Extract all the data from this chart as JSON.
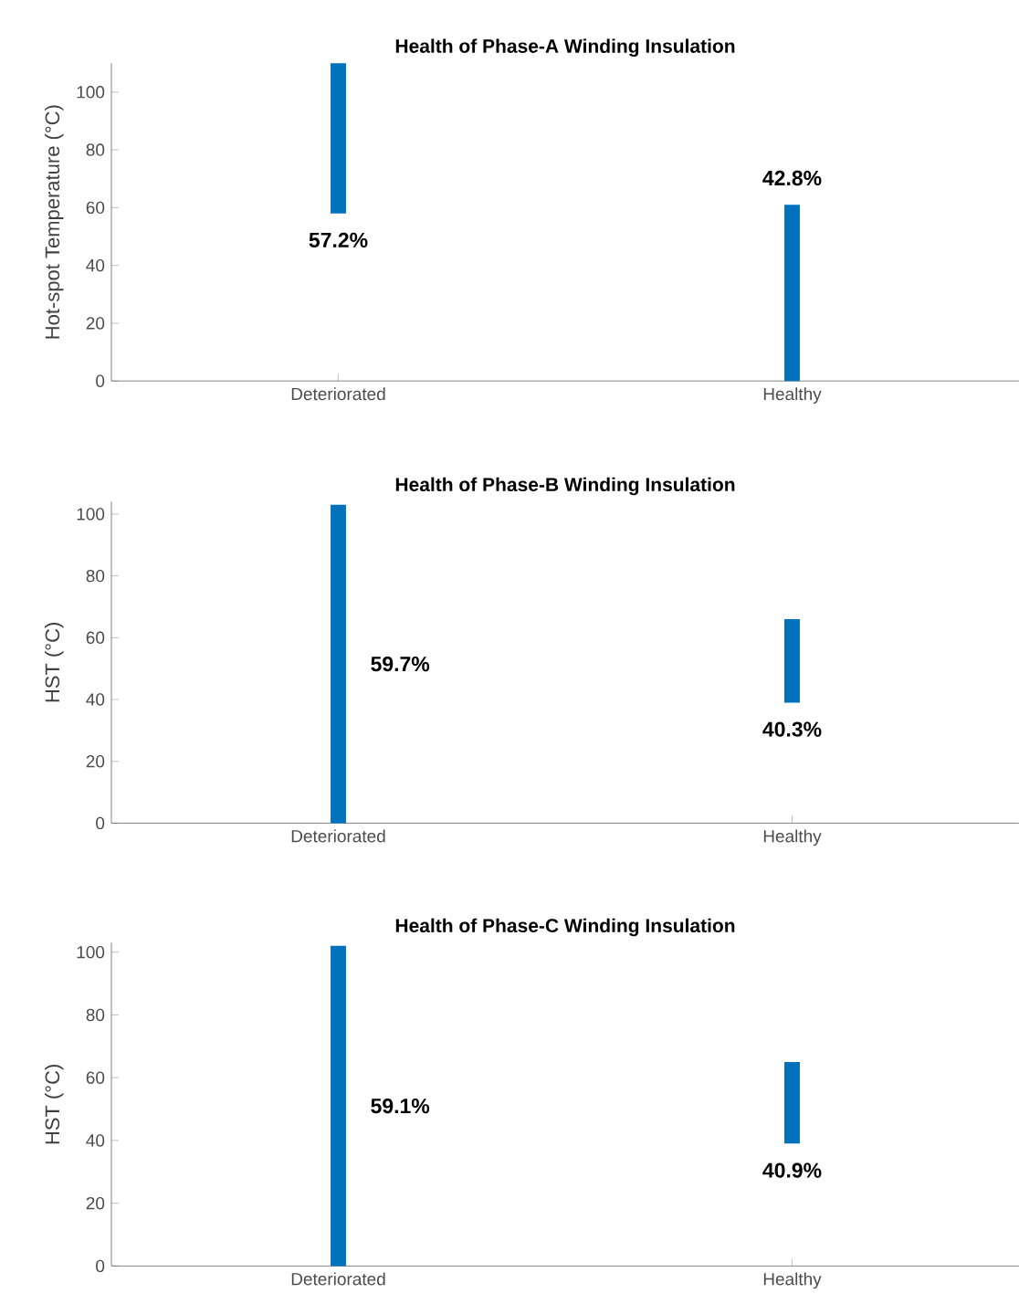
{
  "chart_data": [
    {
      "type": "bar",
      "title": "Health of Phase-A Winding Insulation",
      "ylabel": "Hot-spot Temperature (°C)",
      "categories": [
        "Deteriorated",
        "Healthy"
      ],
      "base": [
        58,
        0
      ],
      "values": [
        52,
        61
      ],
      "annotations": [
        "57.2%",
        "42.8%"
      ],
      "color": "#0072bd",
      "ylim": [
        0,
        110
      ],
      "yticks": [
        0,
        20,
        40,
        60,
        80,
        100
      ]
    },
    {
      "type": "bar",
      "title": "Health of Phase-B Winding Insulation",
      "ylabel": "HST (°C)",
      "categories": [
        "Deteriorated",
        "Healthy"
      ],
      "base": [
        0,
        39
      ],
      "values": [
        103,
        27
      ],
      "annotations": [
        "59.7%",
        "40.3%"
      ],
      "color": "#0072bd",
      "ylim": [
        0,
        104
      ],
      "yticks": [
        0,
        20,
        40,
        60,
        80,
        100
      ]
    },
    {
      "type": "bar",
      "title": "Health of Phase-C Winding Insulation",
      "ylabel": "HST (°C)",
      "categories": [
        "Deteriorated",
        "Healthy"
      ],
      "base": [
        0,
        39
      ],
      "values": [
        102,
        26
      ],
      "annotations": [
        "59.1%",
        "40.9%"
      ],
      "color": "#0072bd",
      "ylim": [
        0,
        103
      ],
      "yticks": [
        0,
        20,
        40,
        60,
        80,
        100
      ]
    }
  ]
}
